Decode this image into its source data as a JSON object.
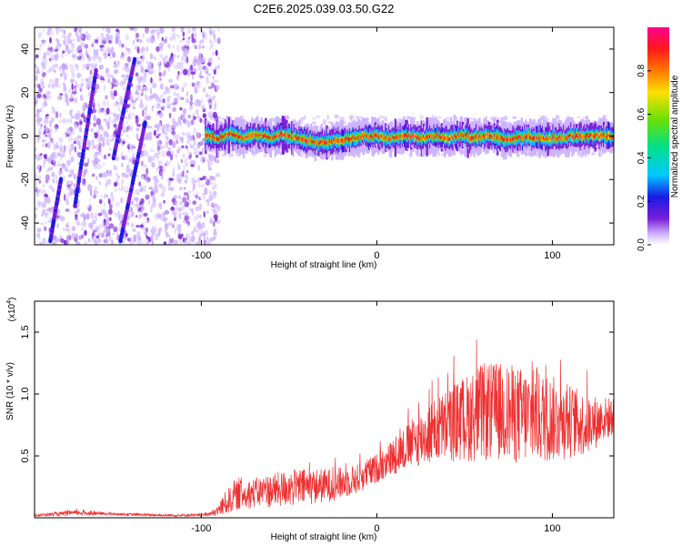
{
  "title": "C2E6.2025.039.03.50.G22",
  "chart_data": [
    {
      "type": "heatmap",
      "xlabel": "Height of straight line (km)",
      "ylabel": "Frequency (Hz)",
      "xlim": [
        -195,
        135
      ],
      "ylim": [
        -50,
        50
      ],
      "x_ticks": [
        -100,
        0,
        100
      ],
      "y_ticks": [
        40,
        20,
        0,
        -20,
        -40
      ],
      "colorbar": {
        "label": "Normalized spectral amplitude",
        "range": [
          0,
          1
        ],
        "ticks": [
          "0.0",
          "0.2",
          "0.4",
          "0.6",
          "0.8"
        ],
        "colors": [
          "#ffffff",
          "#cdb3ff",
          "#7a1fd6",
          "#1a1ae6",
          "#00c8ff",
          "#00e08a",
          "#6ee000",
          "#ffe000",
          "#ff7a00",
          "#ff1a1a",
          "#ff0090"
        ]
      },
      "ridge": {
        "description_free_segment_x": [
          -90,
          135
        ],
        "points": [
          [
            -95,
            0
          ],
          [
            -90,
            -1
          ],
          [
            -85,
            1
          ],
          [
            -80,
            0
          ],
          [
            -75,
            -1
          ],
          [
            -70,
            1
          ],
          [
            -65,
            0
          ],
          [
            -60,
            -1
          ],
          [
            -55,
            1
          ],
          [
            -50,
            0
          ],
          [
            -45,
            -1
          ],
          [
            -40,
            -2
          ],
          [
            -35,
            -3
          ],
          [
            -30,
            -3
          ],
          [
            -25,
            -2
          ],
          [
            -20,
            -2
          ],
          [
            -15,
            -1
          ],
          [
            -10,
            0
          ],
          [
            -5,
            0
          ],
          [
            0,
            0
          ],
          [
            5,
            -1
          ],
          [
            10,
            -1
          ],
          [
            15,
            0
          ],
          [
            20,
            0
          ],
          [
            25,
            -1
          ],
          [
            30,
            0
          ],
          [
            35,
            0
          ],
          [
            40,
            -1
          ],
          [
            45,
            0
          ],
          [
            50,
            0
          ],
          [
            55,
            -1
          ],
          [
            60,
            0
          ],
          [
            65,
            0
          ],
          [
            70,
            -1
          ],
          [
            75,
            -2
          ],
          [
            80,
            -1
          ],
          [
            85,
            0
          ],
          [
            90,
            -1
          ],
          [
            95,
            -1
          ],
          [
            100,
            -1
          ],
          [
            105,
            -1
          ],
          [
            110,
            0
          ],
          [
            115,
            0
          ],
          [
            120,
            0
          ],
          [
            125,
            0
          ],
          [
            130,
            0
          ],
          [
            135,
            0
          ]
        ]
      },
      "streaks": [
        {
          "x": [
            -172,
            -160
          ],
          "y": [
            -32,
            30
          ]
        },
        {
          "x": [
            -186,
            -180
          ],
          "y": [
            -48,
            -20
          ]
        },
        {
          "x": [
            -146,
            -132
          ],
          "y": [
            -48,
            6
          ]
        },
        {
          "x": [
            -150,
            -138
          ],
          "y": [
            -10,
            35
          ]
        }
      ]
    },
    {
      "type": "line",
      "xlabel": "Height of straight line (km)",
      "ylabel": "SNR (10 * v/v)",
      "y_multiplier": "(x10",
      "y_multiplier_exp": "4",
      "y_multiplier_close": ")",
      "xlim": [
        -195,
        135
      ],
      "ylim": [
        0,
        1.75
      ],
      "x_ticks": [
        -100,
        0,
        100
      ],
      "y_ticks": [
        "0.5",
        "1.0",
        "1.5"
      ],
      "series": [
        {
          "color": "#ee3030",
          "envelope_x": [
            -195,
            -170,
            -150,
            -120,
            -100,
            -92,
            -86,
            -80,
            -70,
            -60,
            -50,
            -40,
            -30,
            -20,
            -10,
            0,
            10,
            20,
            30,
            40,
            50,
            60,
            70,
            80,
            90,
            100,
            110,
            120,
            130,
            135
          ],
          "envelope_center": [
            0.02,
            0.04,
            0.03,
            0.02,
            0.02,
            0.04,
            0.12,
            0.18,
            0.2,
            0.22,
            0.24,
            0.25,
            0.26,
            0.28,
            0.32,
            0.4,
            0.5,
            0.6,
            0.68,
            0.75,
            0.8,
            0.85,
            0.86,
            0.83,
            0.82,
            0.8,
            0.78,
            0.75,
            0.8,
            0.82
          ],
          "envelope_spread": [
            0.01,
            0.02,
            0.01,
            0.01,
            0.01,
            0.03,
            0.1,
            0.12,
            0.12,
            0.14,
            0.15,
            0.15,
            0.14,
            0.13,
            0.12,
            0.12,
            0.15,
            0.2,
            0.25,
            0.3,
            0.35,
            0.4,
            0.4,
            0.4,
            0.38,
            0.35,
            0.3,
            0.25,
            0.18,
            0.15
          ]
        }
      ]
    }
  ]
}
